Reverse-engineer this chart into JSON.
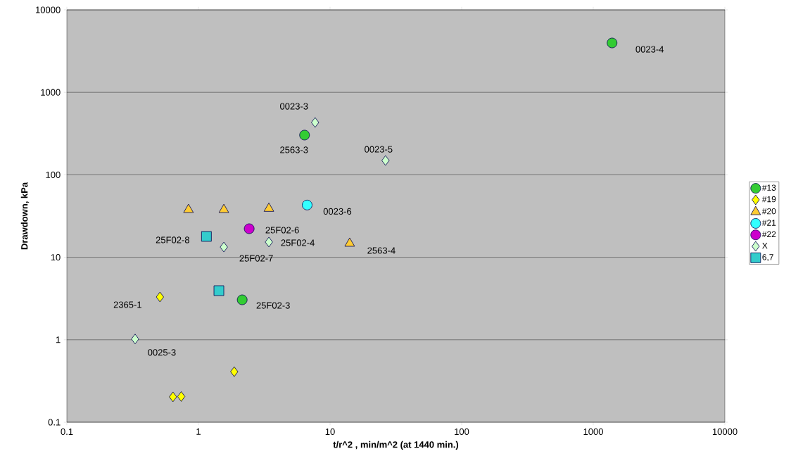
{
  "chart_data": {
    "type": "scatter",
    "xlabel": "t/r^2 , min/m^2 (at 1440 min.)",
    "ylabel": "Drawdown, kPa",
    "log": "xy",
    "grid": "y",
    "legend": "right",
    "xlim": [
      0.1,
      10000
    ],
    "ylim": [
      0.1,
      10000
    ],
    "xticks": [
      0.1,
      1,
      10,
      100,
      1000,
      10000
    ],
    "yticks": [
      0.1,
      1,
      10,
      100,
      1000,
      10000
    ],
    "series": [
      {
        "name": "#13",
        "color": "#33cc33",
        "marker": "circle",
        "x": [
          1390,
          6.4,
          2.15
        ],
        "values": [
          3970,
          303,
          3.05
        ]
      },
      {
        "name": "#19",
        "color": "#ffff00",
        "marker": "diamond",
        "x": [
          0.51,
          1.87,
          0.64,
          0.74
        ],
        "values": [
          3.3,
          0.41,
          0.203,
          0.205
        ]
      },
      {
        "name": "#20",
        "color": "#ffcc33",
        "marker": "triangle",
        "x": [
          0.84,
          1.56,
          3.43,
          14.1
        ],
        "values": [
          37.7,
          37.7,
          39,
          14.7
        ]
      },
      {
        "name": "#21",
        "color": "#33ffff",
        "marker": "circle",
        "x": [
          6.7
        ],
        "values": [
          43
        ]
      },
      {
        "name": "#22",
        "color": "#cc00cc",
        "marker": "circle",
        "x": [
          2.43
        ],
        "values": [
          22.2
        ]
      },
      {
        "name": "X",
        "color": "#ccffcc",
        "marker": "diamond",
        "x": [
          7.7,
          26.4,
          1.56,
          3.43,
          0.33
        ],
        "values": [
          431,
          149,
          13.3,
          15.3,
          1.02
        ]
      },
      {
        "name": "6,7",
        "color": "#33cccc",
        "marker": "square",
        "x": [
          1.15,
          1.43
        ],
        "values": [
          17.9,
          3.94
        ]
      }
    ],
    "annotations": [
      {
        "text": "0023-4",
        "x": 1390,
        "y": 3970
      },
      {
        "text": "0023-3",
        "x": 7.7,
        "y": 431
      },
      {
        "text": "2563-3",
        "x": 6.4,
        "y": 303
      },
      {
        "text": "0023-5",
        "x": 26.4,
        "y": 149
      },
      {
        "text": "0023-6",
        "x": 6.7,
        "y": 43
      },
      {
        "text": "25F02-6",
        "x": 2.43,
        "y": 22.2
      },
      {
        "text": "25F02-8",
        "x": 1.15,
        "y": 17.9
      },
      {
        "text": "25F02-4",
        "x": 3.43,
        "y": 15.3
      },
      {
        "text": "25F02-7",
        "x": 1.56,
        "y": 13.3
      },
      {
        "text": "2563-4",
        "x": 14.1,
        "y": 14.7
      },
      {
        "text": "2365-1",
        "x": 0.51,
        "y": 3.3
      },
      {
        "text": "25F02-3",
        "x": 2.15,
        "y": 3.05
      },
      {
        "text": "0025-3",
        "x": 0.33,
        "y": 1.02
      }
    ]
  }
}
